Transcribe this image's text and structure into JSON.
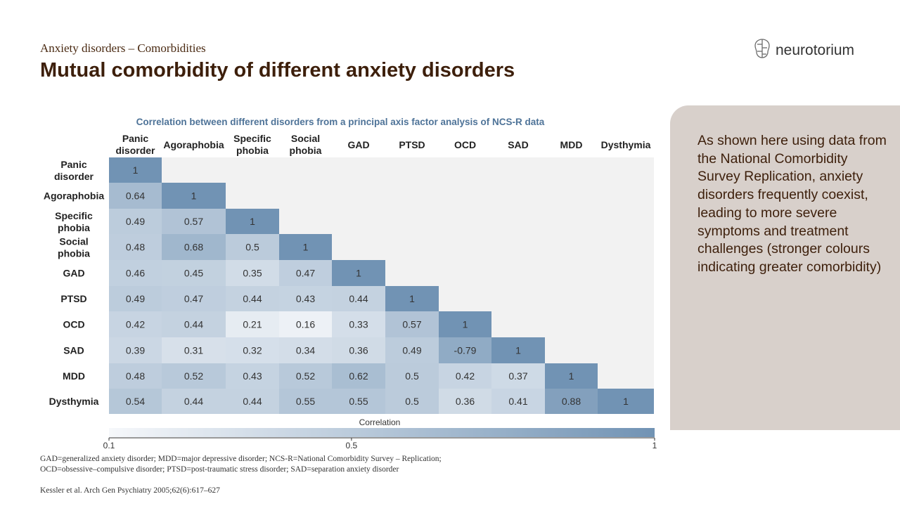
{
  "header": {
    "subtitle": "Anxiety disorders – Comorbidities",
    "title": "Mutual comorbidity of different anxiety disorders"
  },
  "logo": {
    "text": "neurotorium"
  },
  "side_panel": {
    "text": "As shown here using data from the National Comorbidity Survey Replication, anxiety disorders frequently coexist, leading to more severe symptoms and treatment challenges (stronger colours indicating greater comorbidity)"
  },
  "chart_data": {
    "type": "heatmap",
    "title": "Correlation between different disorders from a principal axis factor analysis of NCS-R data",
    "categories": [
      "Panic disorder",
      "Agoraphobia",
      "Specific phobia",
      "Social phobia",
      "GAD",
      "PTSD",
      "OCD",
      "SAD",
      "MDD",
      "Dysthymia"
    ],
    "column_labels": [
      [
        "Panic",
        "disorder"
      ],
      [
        "Agoraphobia"
      ],
      [
        "Specific",
        "phobia"
      ],
      [
        "Social",
        "phobia"
      ],
      [
        "GAD"
      ],
      [
        "PTSD"
      ],
      [
        "OCD"
      ],
      [
        "SAD"
      ],
      [
        "MDD"
      ],
      [
        "Dysthymia"
      ]
    ],
    "row_labels": [
      [
        "Panic",
        "disorder"
      ],
      [
        "Agoraphobia"
      ],
      [
        "Specific",
        "phobia"
      ],
      [
        "Social",
        "phobia"
      ],
      [
        "GAD"
      ],
      [
        "PTSD"
      ],
      [
        "OCD"
      ],
      [
        "SAD"
      ],
      [
        "MDD"
      ],
      [
        "Dysthymia"
      ]
    ],
    "matrix": [
      [
        "1"
      ],
      [
        "0.64",
        "1"
      ],
      [
        "0.49",
        "0.57",
        "1"
      ],
      [
        "0.48",
        "0.68",
        "0.5",
        "1"
      ],
      [
        "0.46",
        "0.45",
        "0.35",
        "0.47",
        "1"
      ],
      [
        "0.49",
        "0.47",
        "0.44",
        "0.43",
        "0.44",
        "1"
      ],
      [
        "0.42",
        "0.44",
        "0.21",
        "0.16",
        "0.33",
        "0.57",
        "1"
      ],
      [
        "0.39",
        "0.31",
        "0.32",
        "0.34",
        "0.36",
        "0.49",
        "-0.79",
        "1"
      ],
      [
        "0.48",
        "0.52",
        "0.43",
        "0.52",
        "0.62",
        "0.5",
        "0.42",
        "0.37",
        "1"
      ],
      [
        "0.54",
        "0.44",
        "0.44",
        "0.55",
        "0.55",
        "0.5",
        "0.36",
        "0.41",
        "0.88",
        "1"
      ]
    ],
    "colorbar": {
      "label": "Correlation",
      "ticks": [
        "0.1",
        "0.5",
        "1"
      ],
      "range": [
        0.1,
        1
      ],
      "color_low": "#f6f8fb",
      "color_high": "#7193b4"
    },
    "empty_cell_color": "#f2f2f2"
  },
  "footnote": {
    "line1": "GAD=generalized anxiety disorder; MDD=major depressive disorder; NCS-R=National Comorbidity Survey – Replication;",
    "line2": "OCD=obsessive–compulsive disorder; PTSD=post-traumatic stress disorder; SAD=separation anxiety disorder"
  },
  "reference": "Kessler et al. Arch Gen Psychiatry 2005;62(6):617–627",
  "colors": {
    "title": "#3d1f0b",
    "chart_title": "#4e7398",
    "panel": "#d8d0cb"
  }
}
